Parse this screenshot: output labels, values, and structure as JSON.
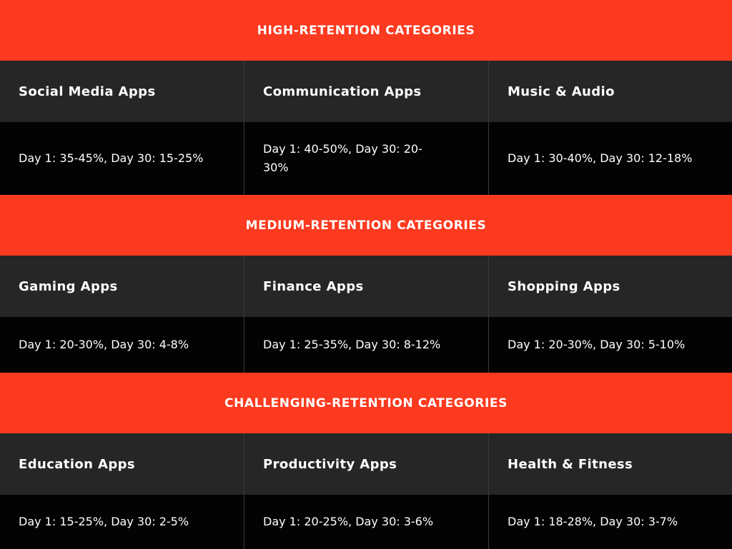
{
  "sections": [
    {
      "title": "HIGH-RETENTION CATEGORIES",
      "categories": [
        {
          "name": "Social Media Apps",
          "retention": "Day 1: 35-45%, Day 30: 15-25%"
        },
        {
          "name": "Communication Apps",
          "retention": "Day 1: 40-50%, Day 30: 20-30%"
        },
        {
          "name": "Music & Audio",
          "retention": "Day 1: 30-40%, Day 30: 12-18%"
        }
      ]
    },
    {
      "title": "MEDIUM-RETENTION CATEGORIES",
      "categories": [
        {
          "name": "Gaming Apps",
          "retention": "Day 1: 20-30%, Day 30: 4-8%"
        },
        {
          "name": "Finance Apps",
          "retention": "Day 1: 25-35%, Day 30: 8-12%"
        },
        {
          "name": "Shopping Apps",
          "retention": "Day 1: 20-30%, Day 30: 5-10%"
        }
      ]
    },
    {
      "title": "CHALLENGING-RETENTION CATEGORIES",
      "categories": [
        {
          "name": "Education Apps",
          "retention": "Day 1: 15-25%, Day 30: 2-5%"
        },
        {
          "name": "Productivity Apps",
          "retention": "Day 1: 20-25%, Day 30: 3-6%"
        },
        {
          "name": "Health & Fitness",
          "retention": "Day 1: 18-28%, Day 30: 3-7%"
        }
      ]
    }
  ],
  "colors": {
    "section_header": "#fc3a1f",
    "category_row": "#262626",
    "value_row": "#030303",
    "text": "#ffffff"
  }
}
